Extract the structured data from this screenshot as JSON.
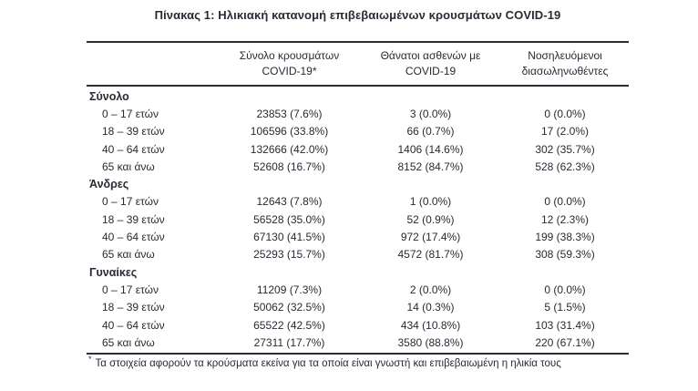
{
  "title": "Πίνακας 1: Ηλικιακή κατανομή επιβεβαιωμένων κρουσμάτων COVID-19",
  "table": {
    "columns": [
      {
        "line1": "Σύνολο κρουσμάτων",
        "line2": "COVID-19*"
      },
      {
        "line1": "Θάνατοι ασθενών με",
        "line2": "COVID-19"
      },
      {
        "line1": "Νοσηλευόμενοι",
        "line2": "διασωληνωθέντες"
      }
    ],
    "sections": [
      {
        "label": "Σύνολο",
        "rows": [
          {
            "cells": [
              "0 – 17 ετών",
              "23853 (7.6%)",
              "3 (0.0%)",
              "0 (0.0%)"
            ]
          },
          {
            "cells": [
              "18 – 39 ετών",
              "106596 (33.8%)",
              "66 (0.7%)",
              "17 (2.0%)"
            ]
          },
          {
            "cells": [
              "40 – 64 ετών",
              "132666 (42.0%)",
              "1406 (14.6%)",
              "302 (35.7%)"
            ]
          },
          {
            "cells": [
              "65 και άνω",
              "52608 (16.7%)",
              "8152 (84.7%)",
              "528 (62.3%)"
            ]
          }
        ]
      },
      {
        "label": "Άνδρες",
        "rows": [
          {
            "cells": [
              "0 – 17 ετών",
              "12643 (7.8%)",
              "1 (0.0%)",
              "0 (0.0%)"
            ]
          },
          {
            "cells": [
              "18 – 39 ετών",
              "56528 (35.0%)",
              "52 (0.9%)",
              "12 (2.3%)"
            ]
          },
          {
            "cells": [
              "40 – 64 ετών",
              "67130 (41.5%)",
              "972 (17.4%)",
              "199 (38.3%)"
            ]
          },
          {
            "cells": [
              "65 και άνω",
              "25293 (15.7%)",
              "4572 (81.7%)",
              "308 (59.3%)"
            ]
          }
        ]
      },
      {
        "label": "Γυναίκες",
        "rows": [
          {
            "cells": [
              "0 – 17 ετών",
              "11209 (7.3%)",
              "2 (0.0%)",
              "0 (0.0%)"
            ]
          },
          {
            "cells": [
              "18 – 39 ετών",
              "50062 (32.5%)",
              "14 (0.3%)",
              "5 (1.5%)"
            ]
          },
          {
            "cells": [
              "40 – 64 ετών",
              "65522 (42.5%)",
              "434 (10.8%)",
              "103 (31.4%)"
            ]
          },
          {
            "cells": [
              "65 και άνω",
              "27311 (17.7%)",
              "3580 (88.8%)",
              "220 (67.1%)"
            ]
          }
        ]
      }
    ]
  },
  "footnote": {
    "marker": "*",
    "text": "Τα στοιχεία αφορούν τα κρούσματα εκείνα για τα οποία είναι γνωστή και επιβεβαιωμένη η ηλικία τους"
  },
  "colors": {
    "text": "#272b33",
    "rule": "#2a2e36"
  }
}
